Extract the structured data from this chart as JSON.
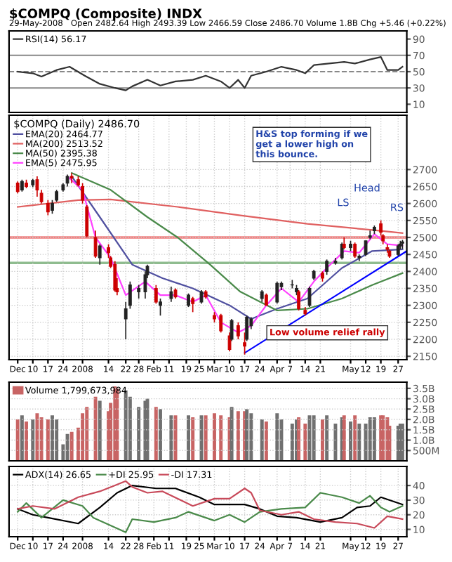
{
  "chart_data": [
    {
      "type": "line",
      "title": "$COMPQ (Composite) INDX",
      "subtitle": "29-May-2008   Open 2482.64 High 2493.39 Low 2466.59 Close 2486.70 Volume 1.8B Chg +5.46 (+0.22%)",
      "series": [
        {
          "name": "RSI(14) 56.17",
          "color": "#333333",
          "x": [
            "2007-12-03",
            "2007-12-10",
            "2007-12-14",
            "2007-12-21",
            "2007-12-27",
            "2008-01-03",
            "2008-01-10",
            "2008-01-17",
            "2008-01-22",
            "2008-01-25",
            "2008-02-01",
            "2008-02-07",
            "2008-02-14",
            "2008-02-22",
            "2008-02-28",
            "2008-03-06",
            "2008-03-10",
            "2008-03-14",
            "2008-03-17",
            "2008-03-20",
            "2008-03-27",
            "2008-04-03",
            "2008-04-10",
            "2008-04-14",
            "2008-04-18",
            "2008-04-25",
            "2008-05-02",
            "2008-05-07",
            "2008-05-14",
            "2008-05-19",
            "2008-05-22",
            "2008-05-27",
            "2008-05-29"
          ],
          "values": [
            50,
            48,
            44,
            52,
            56,
            45,
            35,
            30,
            27,
            32,
            40,
            33,
            38,
            40,
            45,
            38,
            30,
            40,
            30,
            45,
            50,
            56,
            52,
            48,
            58,
            60,
            62,
            60,
            65,
            68,
            52,
            52,
            56
          ]
        }
      ],
      "ylim": [
        0,
        100
      ],
      "yticks": [
        10,
        30,
        50,
        70,
        90
      ],
      "ref_lines": [
        {
          "axis": "y",
          "value": 30,
          "color": "#888888"
        },
        {
          "axis": "y",
          "value": 50,
          "color": "#888888",
          "line_style": "dashed"
        },
        {
          "axis": "y",
          "value": 70,
          "color": "#888888"
        }
      ],
      "xlim": [
        "2007-11-29",
        "2008-05-31"
      ],
      "grid": "x",
      "legend": "top left",
      "tick_labels": "y"
    },
    {
      "type": "candlestick",
      "legend_title": "$COMPQ (Daily) 2486.70",
      "x": [
        "2007-12-03",
        "2007-12-05",
        "2007-12-07",
        "2007-12-10",
        "2007-12-12",
        "2007-12-14",
        "2007-12-17",
        "2007-12-19",
        "2007-12-21",
        "2007-12-24",
        "2007-12-26",
        "2007-12-28",
        "2007-12-31",
        "2008-01-02",
        "2008-01-04",
        "2008-01-08",
        "2008-01-10",
        "2008-01-14",
        "2008-01-15",
        "2008-01-17",
        "2008-01-18",
        "2008-01-22",
        "2008-01-24",
        "2008-01-28",
        "2008-01-31",
        "2008-02-01",
        "2008-02-05",
        "2008-02-07",
        "2008-02-12",
        "2008-02-14",
        "2008-02-20",
        "2008-02-22",
        "2008-02-26",
        "2008-02-28",
        "2008-03-03",
        "2008-03-06",
        "2008-03-10",
        "2008-03-11",
        "2008-03-14",
        "2008-03-17",
        "2008-03-18",
        "2008-03-20",
        "2008-03-25",
        "2008-03-27",
        "2008-04-01",
        "2008-04-03",
        "2008-04-08",
        "2008-04-10",
        "2008-04-11",
        "2008-04-14",
        "2008-04-16",
        "2008-04-18",
        "2008-04-22",
        "2008-04-24",
        "2008-04-28",
        "2008-05-01",
        "2008-05-02",
        "2008-05-05",
        "2008-05-07",
        "2008-05-09",
        "2008-05-12",
        "2008-05-14",
        "2008-05-16",
        "2008-05-19",
        "2008-05-20",
        "2008-05-22",
        "2008-05-23",
        "2008-05-27",
        "2008-05-28",
        "2008-05-29"
      ],
      "ohlc": [
        [
          2660,
          2665,
          2630,
          2635
        ],
        [
          2640,
          2670,
          2635,
          2665
        ],
        [
          2660,
          2670,
          2645,
          2650
        ],
        [
          2655,
          2672,
          2648,
          2668
        ],
        [
          2670,
          2680,
          2620,
          2640
        ],
        [
          2630,
          2640,
          2600,
          2605
        ],
        [
          2600,
          2610,
          2565,
          2575
        ],
        [
          2580,
          2610,
          2570,
          2600
        ],
        [
          2610,
          2640,
          2605,
          2635
        ],
        [
          2640,
          2660,
          2635,
          2655
        ],
        [
          2660,
          2685,
          2650,
          2680
        ],
        [
          2680,
          2690,
          2660,
          2675
        ],
        [
          2670,
          2680,
          2650,
          2655
        ],
        [
          2650,
          2660,
          2600,
          2610
        ],
        [
          2590,
          2595,
          2500,
          2505
        ],
        [
          2500,
          2520,
          2440,
          2445
        ],
        [
          2440,
          2480,
          2420,
          2475
        ],
        [
          2470,
          2480,
          2440,
          2455
        ],
        [
          2440,
          2445,
          2410,
          2415
        ],
        [
          2420,
          2430,
          2340,
          2345
        ],
        [
          2350,
          2380,
          2330,
          2340
        ],
        [
          2260,
          2310,
          2200,
          2290
        ],
        [
          2300,
          2370,
          2290,
          2360
        ],
        [
          2340,
          2360,
          2320,
          2350
        ],
        [
          2340,
          2400,
          2320,
          2390
        ],
        [
          2390,
          2420,
          2380,
          2415
        ],
        [
          2350,
          2360,
          2305,
          2310
        ],
        [
          2300,
          2320,
          2270,
          2310
        ],
        [
          2320,
          2355,
          2310,
          2340
        ],
        [
          2345,
          2350,
          2320,
          2325
        ],
        [
          2300,
          2335,
          2295,
          2330
        ],
        [
          2320,
          2325,
          2280,
          2305
        ],
        [
          2310,
          2345,
          2305,
          2340
        ],
        [
          2340,
          2345,
          2320,
          2325
        ],
        [
          2270,
          2280,
          2250,
          2260
        ],
        [
          2270,
          2275,
          2220,
          2225
        ],
        [
          2210,
          2220,
          2165,
          2170
        ],
        [
          2200,
          2260,
          2195,
          2255
        ],
        [
          2240,
          2250,
          2200,
          2210
        ],
        [
          2190,
          2220,
          2155,
          2180
        ],
        [
          2200,
          2270,
          2195,
          2265
        ],
        [
          2240,
          2265,
          2230,
          2260
        ],
        [
          2320,
          2345,
          2310,
          2340
        ],
        [
          2330,
          2335,
          2300,
          2300
        ],
        [
          2310,
          2370,
          2305,
          2365
        ],
        [
          2355,
          2370,
          2345,
          2365
        ],
        [
          2360,
          2375,
          2350,
          2360
        ],
        [
          2340,
          2360,
          2330,
          2350
        ],
        [
          2340,
          2345,
          2285,
          2290
        ],
        [
          2285,
          2295,
          2270,
          2275
        ],
        [
          2300,
          2355,
          2295,
          2350
        ],
        [
          2380,
          2405,
          2375,
          2400
        ],
        [
          2395,
          2400,
          2370,
          2380
        ],
        [
          2400,
          2435,
          2390,
          2430
        ],
        [
          2425,
          2440,
          2420,
          2430
        ],
        [
          2440,
          2485,
          2435,
          2480
        ],
        [
          2480,
          2500,
          2465,
          2470
        ],
        [
          2470,
          2490,
          2460,
          2480
        ],
        [
          2480,
          2485,
          2440,
          2445
        ],
        [
          2440,
          2450,
          2430,
          2445
        ],
        [
          2450,
          2490,
          2445,
          2490
        ],
        [
          2500,
          2520,
          2495,
          2505
        ],
        [
          2520,
          2535,
          2510,
          2530
        ],
        [
          2540,
          2550,
          2505,
          2515
        ],
        [
          2505,
          2510,
          2480,
          2490
        ],
        [
          2470,
          2480,
          2455,
          2465
        ],
        [
          2460,
          2465,
          2440,
          2445
        ],
        [
          2450,
          2480,
          2445,
          2475
        ],
        [
          2475,
          2490,
          2465,
          2481
        ],
        [
          2483,
          2493,
          2467,
          2487
        ]
      ],
      "colors": [
        "#cc0000",
        "#222222",
        "#cc0000",
        "#222222",
        "#cc0000",
        "#cc0000",
        "#cc0000",
        "#222222",
        "#222222",
        "#222222",
        "#222222",
        "#cc0000",
        "#cc0000",
        "#cc0000",
        "#cc0000",
        "#cc0000",
        "#222222",
        "#cc0000",
        "#cc0000",
        "#cc0000",
        "#cc0000",
        "#222222",
        "#222222",
        "#222222",
        "#222222",
        "#222222",
        "#cc0000",
        "#222222",
        "#222222",
        "#cc0000",
        "#222222",
        "#cc0000",
        "#222222",
        "#cc0000",
        "#cc0000",
        "#cc0000",
        "#cc0000",
        "#222222",
        "#cc0000",
        "#cc0000",
        "#222222",
        "#222222",
        "#222222",
        "#cc0000",
        "#222222",
        "#222222",
        "#222222",
        "#222222",
        "#cc0000",
        "#cc0000",
        "#222222",
        "#222222",
        "#cc0000",
        "#222222",
        "#222222",
        "#222222",
        "#cc0000",
        "#222222",
        "#cc0000",
        "#222222",
        "#222222",
        "#222222",
        "#222222",
        "#cc0000",
        "#cc0000",
        "#cc0000",
        "#cc0000",
        "#222222",
        "#222222",
        "#222222"
      ],
      "series": [
        {
          "type": "line",
          "name": "EMA(20) 2464.77",
          "color": "#5050a0",
          "x": [
            "2007-12-28",
            "2008-01-10",
            "2008-01-25",
            "2008-02-08",
            "2008-02-22",
            "2008-03-10",
            "2008-03-20",
            "2008-04-01",
            "2008-04-15",
            "2008-05-01",
            "2008-05-15",
            "2008-05-29"
          ],
          "values": [
            2680,
            2560,
            2420,
            2380,
            2350,
            2300,
            2260,
            2290,
            2320,
            2410,
            2460,
            2465
          ]
        },
        {
          "type": "line",
          "name": "MA(200) 2513.52",
          "color": "#e06060",
          "x": [
            "2007-12-03",
            "2007-12-31",
            "2008-01-15",
            "2008-02-15",
            "2008-03-15",
            "2008-04-15",
            "2008-05-15",
            "2008-05-29"
          ],
          "values": [
            2590,
            2610,
            2612,
            2590,
            2565,
            2540,
            2522,
            2513
          ]
        },
        {
          "type": "line",
          "name": "MA(50) 2395.38",
          "color": "#4a8a4a",
          "x": [
            "2007-12-28",
            "2008-01-15",
            "2008-02-01",
            "2008-02-15",
            "2008-03-01",
            "2008-03-15",
            "2008-04-01",
            "2008-04-15",
            "2008-05-01",
            "2008-05-15",
            "2008-05-29"
          ],
          "values": [
            2690,
            2640,
            2560,
            2500,
            2420,
            2340,
            2285,
            2290,
            2320,
            2360,
            2395
          ]
        },
        {
          "type": "line",
          "name": "EMA(5) 2475.95",
          "color": "#ff40ff",
          "x": [
            "2007-12-26",
            "2008-01-02",
            "2008-01-08",
            "2008-01-15",
            "2008-01-22",
            "2008-01-31",
            "2008-02-07",
            "2008-02-14",
            "2008-02-22",
            "2008-02-28",
            "2008-03-06",
            "2008-03-14",
            "2008-03-20",
            "2008-03-27",
            "2008-04-03",
            "2008-04-11",
            "2008-04-18",
            "2008-04-24",
            "2008-05-02",
            "2008-05-09",
            "2008-05-16",
            "2008-05-22",
            "2008-05-29"
          ],
          "values": [
            2680,
            2640,
            2500,
            2440,
            2330,
            2370,
            2330,
            2330,
            2310,
            2330,
            2250,
            2220,
            2240,
            2300,
            2350,
            2310,
            2370,
            2410,
            2460,
            2455,
            2510,
            2480,
            2476
          ]
        },
        {
          "type": "line",
          "color": "#0000ff",
          "x": [
            "2008-03-17",
            "2008-05-31"
          ],
          "values": [
            2160,
            2460
          ]
        }
      ],
      "ref_lines": [
        {
          "axis": "y",
          "value": 2500,
          "color": "#f08080"
        },
        {
          "axis": "y",
          "value": 2425,
          "color": "#8fbc8f"
        }
      ],
      "annotations": [
        "H&S top forming if we\nget a lower high on\nthis bounce.",
        "Head",
        "LS",
        "RS",
        "Low volume relief rally"
      ],
      "xlim": [
        "2007-11-29",
        "2008-05-31"
      ],
      "ylim": [
        2140,
        2860
      ],
      "yticks": [
        2150,
        2200,
        2250,
        2300,
        2350,
        2400,
        2450,
        2500,
        2550,
        2600,
        2650,
        2700
      ],
      "xticks": [
        {
          "value": "2007-12-03",
          "label": "Dec"
        },
        {
          "value": "2007-12-10",
          "label": "10"
        },
        {
          "value": "2007-12-17",
          "label": "17"
        },
        {
          "value": "2007-12-24",
          "label": "24"
        },
        {
          "value": "2008-01-02",
          "label": "2008"
        },
        {
          "value": "2008-01-14",
          "label": "14"
        },
        {
          "value": "2008-01-22",
          "label": "22"
        },
        {
          "value": "2008-01-28",
          "label": "28"
        },
        {
          "value": "2008-02-04",
          "label": "Feb"
        },
        {
          "value": "2008-02-11",
          "label": "11"
        },
        {
          "value": "2008-02-19",
          "label": "19"
        },
        {
          "value": "2008-02-25",
          "label": "25"
        },
        {
          "value": "2008-03-03",
          "label": "Mar"
        },
        {
          "value": "2008-03-10",
          "label": "10"
        },
        {
          "value": "2008-03-17",
          "label": "17"
        },
        {
          "value": "2008-03-24",
          "label": "24"
        },
        {
          "value": "2008-04-01",
          "label": "Apr"
        },
        {
          "value": "2008-04-07",
          "label": "7"
        },
        {
          "value": "2008-04-14",
          "label": "14"
        },
        {
          "value": "2008-04-21",
          "label": "21"
        },
        {
          "value": "2008-05-05",
          "label": "May"
        },
        {
          "value": "2008-05-12",
          "label": "12"
        },
        {
          "value": "2008-05-19",
          "label": "19"
        },
        {
          "value": "2008-05-27",
          "label": "27"
        }
      ],
      "grid": true,
      "legend": "top left"
    },
    {
      "type": "bar",
      "series": [
        {
          "name": "Volume 1,799,673,984",
          "values": [
            2000000000,
            2200000000,
            1900000000,
            2000000000,
            2300000000,
            2100000000,
            2000000000,
            2200000000,
            2000000000,
            800000000,
            1300000000,
            1400000000,
            1600000000,
            2300000000,
            2600000000,
            3100000000,
            2900000000,
            2400000000,
            2800000000,
            3600000000,
            3500000000,
            3400000000,
            3100000000,
            2600000000,
            2900000000,
            3000000000,
            2600000000,
            2500000000,
            2200000000,
            2200000000,
            2200000000,
            2100000000,
            2200000000,
            2200000000,
            2300000000,
            2200000000,
            2100000000,
            2600000000,
            2400000000,
            2400000000,
            2500000000,
            2300000000,
            2000000000,
            1900000000,
            2300000000,
            2000000000,
            1800000000,
            2000000000,
            2100000000,
            1800000000,
            2200000000,
            2200000000,
            2000000000,
            2200000000,
            1800000000,
            2100000000,
            2200000000,
            1900000000,
            2200000000,
            1800000000,
            1800000000,
            2100000000,
            2100000000,
            2200000000,
            2200000000,
            2100000000,
            1700000000,
            1700000000,
            1800000000,
            1800000000
          ],
          "colors": [
            "#c86464",
            "#707070",
            "#c86464",
            "#707070",
            "#c86464",
            "#c86464",
            "#c86464",
            "#707070",
            "#707070",
            "#707070",
            "#707070",
            "#c86464",
            "#c86464",
            "#c86464",
            "#c86464",
            "#c86464",
            "#707070",
            "#c86464",
            "#c86464",
            "#c86464",
            "#c86464",
            "#707070",
            "#707070",
            "#707070",
            "#707070",
            "#707070",
            "#c86464",
            "#707070",
            "#707070",
            "#c86464",
            "#707070",
            "#c86464",
            "#707070",
            "#c86464",
            "#c86464",
            "#c86464",
            "#c86464",
            "#707070",
            "#c86464",
            "#c86464",
            "#707070",
            "#707070",
            "#707070",
            "#c86464",
            "#707070",
            "#707070",
            "#707070",
            "#707070",
            "#c86464",
            "#c86464",
            "#707070",
            "#707070",
            "#c86464",
            "#707070",
            "#707070",
            "#707070",
            "#c86464",
            "#707070",
            "#c86464",
            "#707070",
            "#707070",
            "#707070",
            "#707070",
            "#c86464",
            "#c86464",
            "#c86464",
            "#c86464",
            "#707070",
            "#707070",
            "#707070"
          ]
        }
      ],
      "x": [
        "2007-12-03",
        "2007-12-05",
        "2007-12-07",
        "2007-12-10",
        "2007-12-12",
        "2007-12-14",
        "2007-12-17",
        "2007-12-19",
        "2007-12-21",
        "2007-12-24",
        "2007-12-26",
        "2007-12-28",
        "2007-12-31",
        "2008-01-02",
        "2008-01-04",
        "2008-01-08",
        "2008-01-10",
        "2008-01-14",
        "2008-01-15",
        "2008-01-17",
        "2008-01-18",
        "2008-01-22",
        "2008-01-24",
        "2008-01-28",
        "2008-01-31",
        "2008-02-01",
        "2008-02-05",
        "2008-02-07",
        "2008-02-12",
        "2008-02-14",
        "2008-02-20",
        "2008-02-22",
        "2008-02-26",
        "2008-02-28",
        "2008-03-03",
        "2008-03-06",
        "2008-03-10",
        "2008-03-11",
        "2008-03-14",
        "2008-03-17",
        "2008-03-18",
        "2008-03-20",
        "2008-03-25",
        "2008-03-27",
        "2008-04-01",
        "2008-04-03",
        "2008-04-08",
        "2008-04-10",
        "2008-04-11",
        "2008-04-14",
        "2008-04-16",
        "2008-04-18",
        "2008-04-22",
        "2008-04-24",
        "2008-04-28",
        "2008-05-01",
        "2008-05-02",
        "2008-05-05",
        "2008-05-07",
        "2008-05-09",
        "2008-05-12",
        "2008-05-14",
        "2008-05-16",
        "2008-05-19",
        "2008-05-20",
        "2008-05-22",
        "2008-05-23",
        "2008-05-27",
        "2008-05-28",
        "2008-05-29"
      ],
      "xlim": [
        "2007-11-29",
        "2008-05-31"
      ],
      "ylim": [
        0,
        3800000000
      ],
      "yticks": [
        {
          "value": 500000000,
          "label": "500M"
        },
        {
          "value": 1000000000,
          "label": "1.0B"
        },
        {
          "value": 1500000000,
          "label": "1.5B"
        },
        {
          "value": 2000000000,
          "label": "2.0B"
        },
        {
          "value": 2500000000,
          "label": "2.5B"
        },
        {
          "value": 3000000000,
          "label": "3.0B"
        },
        {
          "value": 3500000000,
          "label": "3.5B"
        }
      ],
      "grid": true,
      "legend": "top left",
      "tick_labels": "y"
    },
    {
      "type": "line",
      "series": [
        {
          "name": "ADX(14) 26.65",
          "color": "#000000",
          "x": [
            "2007-12-03",
            "2007-12-10",
            "2007-12-17",
            "2007-12-31",
            "2008-01-10",
            "2008-01-18",
            "2008-01-25",
            "2008-02-05",
            "2008-02-14",
            "2008-02-25",
            "2008-03-03",
            "2008-03-10",
            "2008-03-17",
            "2008-03-24",
            "2008-04-01",
            "2008-04-10",
            "2008-04-21",
            "2008-05-01",
            "2008-05-08",
            "2008-05-14",
            "2008-05-19",
            "2008-05-29"
          ],
          "values": [
            24,
            20,
            18,
            14,
            25,
            35,
            40,
            38,
            38,
            32,
            27,
            27,
            27,
            24,
            19,
            18,
            15,
            18,
            25,
            26,
            32,
            27
          ]
        },
        {
          "name": "+DI 25.95",
          "color": "#4a8a4a",
          "x": [
            "2007-12-03",
            "2007-12-07",
            "2007-12-14",
            "2007-12-24",
            "2008-01-02",
            "2008-01-07",
            "2008-01-22",
            "2008-01-25",
            "2008-02-04",
            "2008-02-14",
            "2008-02-20",
            "2008-03-03",
            "2008-03-10",
            "2008-03-17",
            "2008-03-24",
            "2008-04-03",
            "2008-04-14",
            "2008-04-21",
            "2008-05-01",
            "2008-05-09",
            "2008-05-14",
            "2008-05-19",
            "2008-05-23",
            "2008-05-29"
          ],
          "values": [
            22,
            28,
            18,
            30,
            26,
            18,
            8,
            17,
            15,
            18,
            22,
            16,
            20,
            15,
            22,
            24,
            25,
            35,
            32,
            28,
            33,
            25,
            22,
            26
          ]
        },
        {
          "name": "-DI 17.31",
          "color": "#c84a5a",
          "x": [
            "2007-12-03",
            "2007-12-10",
            "2007-12-20",
            "2007-12-31",
            "2008-01-10",
            "2008-01-17",
            "2008-01-22",
            "2008-01-25",
            "2008-02-01",
            "2008-02-08",
            "2008-02-22",
            "2008-03-03",
            "2008-03-10",
            "2008-03-17",
            "2008-03-20",
            "2008-03-24",
            "2008-04-03",
            "2008-04-11",
            "2008-04-18",
            "2008-04-28",
            "2008-05-08",
            "2008-05-16",
            "2008-05-22",
            "2008-05-29"
          ],
          "values": [
            24,
            26,
            24,
            32,
            36,
            40,
            43,
            39,
            35,
            36,
            26,
            31,
            31,
            38,
            35,
            23,
            20,
            22,
            17,
            15,
            14,
            11,
            19,
            17
          ]
        }
      ],
      "xlim": [
        "2007-11-29",
        "2008-05-31"
      ],
      "ylim": [
        5,
        53
      ],
      "yticks": [
        10,
        20,
        30,
        40
      ],
      "xticks": [
        {
          "value": "2007-12-03",
          "label": "Dec"
        },
        {
          "value": "2007-12-10",
          "label": "10"
        },
        {
          "value": "2007-12-17",
          "label": "17"
        },
        {
          "value": "2007-12-24",
          "label": "24"
        },
        {
          "value": "2008-01-02",
          "label": "2008"
        },
        {
          "value": "2008-01-14",
          "label": "14"
        },
        {
          "value": "2008-01-22",
          "label": "22"
        },
        {
          "value": "2008-01-28",
          "label": "28"
        },
        {
          "value": "2008-02-04",
          "label": "Feb"
        },
        {
          "value": "2008-02-11",
          "label": "11"
        },
        {
          "value": "2008-02-19",
          "label": "19"
        },
        {
          "value": "2008-02-25",
          "label": "25"
        },
        {
          "value": "2008-03-03",
          "label": "Mar"
        },
        {
          "value": "2008-03-10",
          "label": "10"
        },
        {
          "value": "2008-03-17",
          "label": "17"
        },
        {
          "value": "2008-03-24",
          "label": "24"
        },
        {
          "value": "2008-04-01",
          "label": "Apr"
        },
        {
          "value": "2008-04-07",
          "label": "7"
        },
        {
          "value": "2008-04-14",
          "label": "14"
        },
        {
          "value": "2008-04-21",
          "label": "21"
        },
        {
          "value": "2008-05-05",
          "label": "May"
        },
        {
          "value": "2008-05-12",
          "label": "12"
        },
        {
          "value": "2008-05-19",
          "label": "19"
        },
        {
          "value": "2008-05-27",
          "label": "27"
        }
      ],
      "grid": true,
      "legend": "top left"
    }
  ]
}
